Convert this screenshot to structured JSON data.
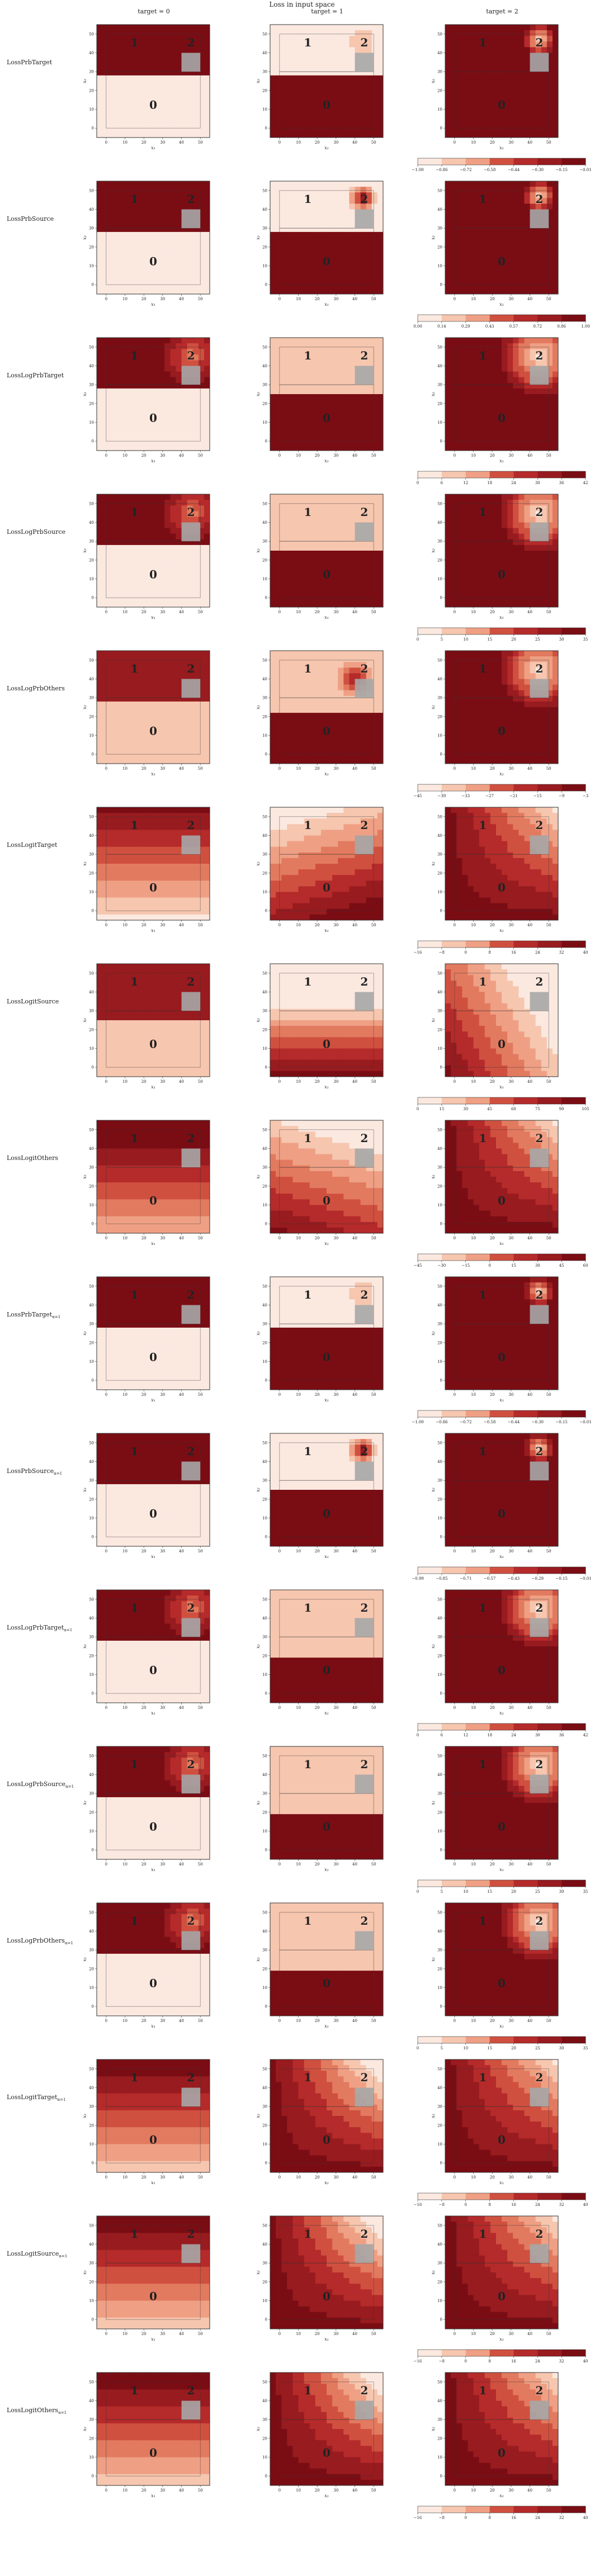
{
  "figure": {
    "suptitle": "Loss in input space",
    "column_titles": [
      "target = 0",
      "target = 1",
      "target = 2"
    ],
    "row_labels": [
      "LossPrbTarget",
      "LossPrbSource",
      "LossLogPrbTarget",
      "LossLogPrbSource",
      "LossLogPrbOthers",
      "LossLogitTarget",
      "LossLogitSource",
      "LossLogitOthers",
      "LossPrbTarget",
      "LossPrbSource",
      "LossLogPrbTarget",
      "LossLogPrbSource",
      "LossLogPrbOthers",
      "LossLogitTarget",
      "LossLogitSource",
      "LossLogitOthers"
    ],
    "row_label_subscripts": [
      "",
      "",
      "",
      "",
      "",
      "",
      "",
      "",
      "α=1",
      "α=1",
      "α=1",
      "α=1",
      "α=1",
      "α=1",
      "α=1",
      "α=1"
    ],
    "axis_label_x": "x₁",
    "axis_label_y": "x₂",
    "region_labels": [
      "1",
      "2",
      "0"
    ],
    "colors": {
      "low": "#fbe9e0",
      "high": "#7a0d14",
      "marker": "#a7a7a7",
      "frame": "#333333"
    }
  },
  "chart_data": {
    "type": "heatmap",
    "colormap": "Reds",
    "x_ticks": [
      0,
      10,
      20,
      30,
      40,
      50
    ],
    "y_ticks": [
      0,
      10,
      20,
      30,
      40,
      50
    ],
    "xlim": [
      -5,
      55
    ],
    "ylim": [
      -5,
      55
    ],
    "regions": {
      "class_1": {
        "label": "1",
        "x": [
          0,
          50
        ],
        "y": [
          30,
          50
        ]
      },
      "class_2": {
        "label": "2",
        "x": [
          40,
          50
        ],
        "y": [
          40,
          50
        ]
      },
      "class_0": {
        "label": "0",
        "x": [
          0,
          50
        ],
        "y": [
          0,
          30
        ]
      }
    },
    "rows": [
      {
        "name": "LossPrbTarget",
        "colorbar_ticks": [
          "−1.00",
          "−0.86",
          "−0.72",
          "−0.58",
          "−0.44",
          "−0.30",
          "−0.15",
          "−0.01"
        ]
      },
      {
        "name": "LossPrbSource",
        "colorbar_ticks": [
          "0.00",
          "0.14",
          "0.29",
          "0.43",
          "0.57",
          "0.72",
          "0.86",
          "1.00"
        ]
      },
      {
        "name": "LossLogPrbTarget",
        "colorbar_ticks": [
          "0",
          "6",
          "12",
          "18",
          "24",
          "30",
          "36",
          "42"
        ]
      },
      {
        "name": "LossLogPrbSource",
        "colorbar_ticks": [
          "0",
          "5",
          "10",
          "15",
          "20",
          "25",
          "30",
          "35"
        ]
      },
      {
        "name": "LossLogPrbOthers",
        "colorbar_ticks": [
          "−45",
          "−39",
          "−33",
          "−27",
          "−21",
          "−15",
          "−9",
          "−3"
        ]
      },
      {
        "name": "LossLogitTarget",
        "colorbar_ticks": [
          "−16",
          "−8",
          "0",
          "8",
          "16",
          "24",
          "32",
          "40"
        ]
      },
      {
        "name": "LossLogitSource",
        "colorbar_ticks": [
          "0",
          "15",
          "30",
          "45",
          "60",
          "75",
          "90",
          "105"
        ]
      },
      {
        "name": "LossLogitOthers",
        "colorbar_ticks": [
          "−45",
          "−30",
          "−15",
          "0",
          "15",
          "30",
          "45",
          "60"
        ]
      },
      {
        "name": "LossPrbTarget α=1",
        "colorbar_ticks": [
          "−1.00",
          "−0.86",
          "−0.72",
          "−0.58",
          "−0.44",
          "−0.30",
          "−0.15",
          "−0.01"
        ]
      },
      {
        "name": "LossPrbSource α=1",
        "colorbar_ticks": [
          "−0.99",
          "−0.85",
          "−0.71",
          "−0.57",
          "−0.43",
          "−0.29",
          "−0.15",
          "−0.01"
        ]
      },
      {
        "name": "LossLogPrbTarget α=1",
        "colorbar_ticks": [
          "0",
          "6",
          "12",
          "18",
          "24",
          "30",
          "36",
          "42"
        ]
      },
      {
        "name": "LossLogPrbSource α=1",
        "colorbar_ticks": [
          "0",
          "5",
          "10",
          "15",
          "20",
          "25",
          "30",
          "35"
        ]
      },
      {
        "name": "LossLogPrbOthers α=1",
        "colorbar_ticks": [
          "0",
          "5",
          "10",
          "15",
          "20",
          "25",
          "30",
          "35"
        ]
      },
      {
        "name": "LossLogitTarget α=1",
        "colorbar_ticks": [
          "−16",
          "−8",
          "0",
          "8",
          "16",
          "24",
          "32",
          "40"
        ]
      },
      {
        "name": "LossLogitSource α=1",
        "colorbar_ticks": [
          "−16",
          "−8",
          "0",
          "8",
          "16",
          "24",
          "32",
          "40"
        ]
      },
      {
        "name": "LossLogitOthers α=1",
        "colorbar_ticks": [
          "−16",
          "−8",
          "0",
          "8",
          "16",
          "24",
          "32",
          "40"
        ]
      }
    ]
  }
}
